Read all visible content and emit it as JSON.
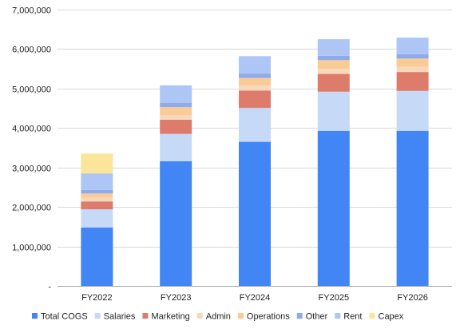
{
  "chart_data": {
    "type": "bar",
    "stacked": true,
    "title": "",
    "xlabel": "",
    "ylabel": "",
    "ylim": [
      0,
      7000000
    ],
    "y_ticks": [
      0,
      1000000,
      2000000,
      3000000,
      4000000,
      5000000,
      6000000,
      7000000
    ],
    "y_tick_labels": [
      "-",
      "1,000,000",
      "2,000,000",
      "3,000,000",
      "4,000,000",
      "5,000,000",
      "6,000,000",
      "7,000,000"
    ],
    "grid": "horizontal",
    "legend_position": "bottom",
    "categories": [
      "FY2022",
      "FY2023",
      "FY2024",
      "FY2025",
      "FY2026"
    ],
    "series": [
      {
        "name": "Total COGS",
        "color": "#4285f4",
        "values": [
          1480000,
          3160000,
          3650000,
          3930000,
          3930000
        ]
      },
      {
        "name": "Salaries",
        "color": "#c6d9f7",
        "values": [
          460000,
          690000,
          860000,
          990000,
          1010000
        ]
      },
      {
        "name": "Marketing",
        "color": "#dd7c6b",
        "values": [
          200000,
          360000,
          440000,
          450000,
          480000
        ]
      },
      {
        "name": "Admin",
        "color": "#f7d8bd",
        "values": [
          90000,
          120000,
          130000,
          130000,
          130000
        ]
      },
      {
        "name": "Operations",
        "color": "#f9cb95",
        "values": [
          110000,
          200000,
          190000,
          220000,
          210000
        ]
      },
      {
        "name": "Other",
        "color": "#8fabee",
        "values": [
          90000,
          110000,
          110000,
          110000,
          110000
        ]
      },
      {
        "name": "Rent",
        "color": "#adc6f6",
        "values": [
          420000,
          440000,
          440000,
          420000,
          420000
        ]
      },
      {
        "name": "Capex",
        "color": "#fce59a",
        "values": [
          500000,
          0,
          0,
          0,
          0
        ]
      }
    ]
  }
}
